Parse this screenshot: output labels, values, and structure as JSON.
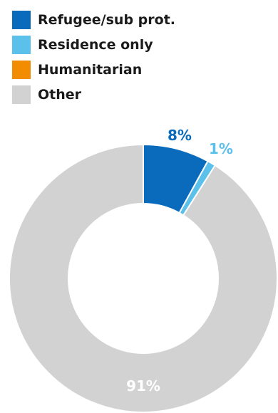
{
  "chart_data": {
    "type": "pie",
    "donut": true,
    "title": "",
    "legend_position": "top-left",
    "slices": [
      {
        "name": "Refugee/sub prot.",
        "value": 8,
        "label": "8%",
        "color": "#0a6bbd",
        "label_color": "#0a6bbd"
      },
      {
        "name": "Residence only",
        "value": 1,
        "label": "1%",
        "color": "#5bc0ea",
        "label_color": "#5bc0ea"
      },
      {
        "name": "Humanitarian",
        "value": 0,
        "label": "",
        "color": "#f28c00",
        "label_color": "#f28c00"
      },
      {
        "name": "Other",
        "value": 91,
        "label": "91%",
        "color": "#d2d2d2",
        "label_color": "#ffffff"
      }
    ]
  }
}
